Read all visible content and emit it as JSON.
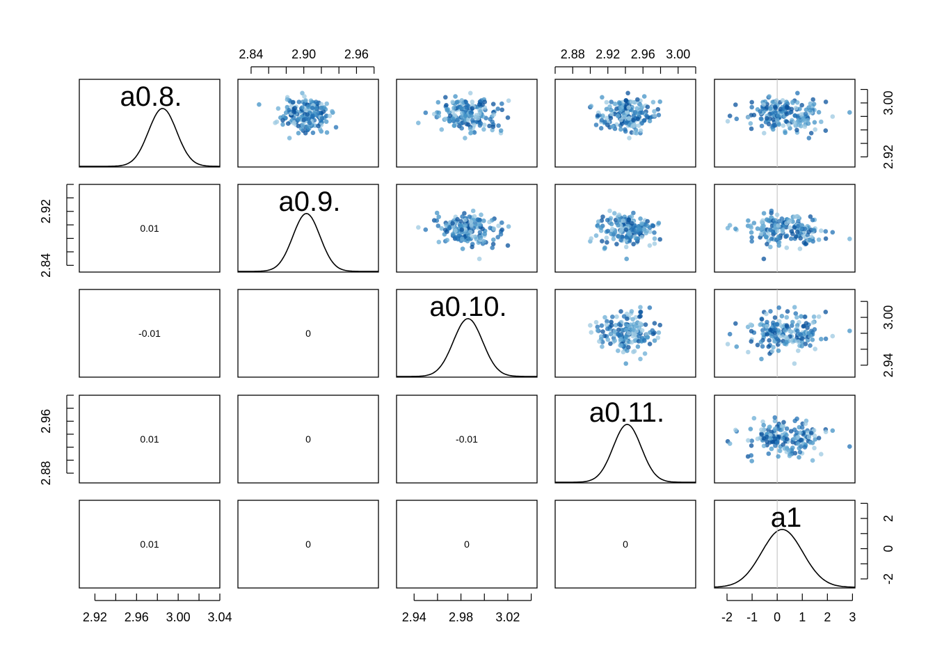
{
  "chart_data": {
    "type": "pairs",
    "variables": [
      "a0.8.",
      "a0.9.",
      "a0.10.",
      "a0.11.",
      "a1"
    ],
    "ranges": [
      [
        2.905,
        3.04
      ],
      [
        2.825,
        2.985
      ],
      [
        2.925,
        3.045
      ],
      [
        2.86,
        3.02
      ],
      [
        -2.5,
        3.1
      ]
    ],
    "axis_ticks": {
      "top": [
        {
          "var": 1,
          "major": [
            "2.84",
            "2.90",
            "2.96"
          ],
          "minor_step": 0.02
        },
        {
          "var": 3,
          "major": [
            "2.88",
            "2.92",
            "2.96",
            "3.00"
          ],
          "minor_step": 0.02
        }
      ],
      "bottom": [
        {
          "var": 0,
          "major": [
            "2.92",
            "2.96",
            "3.00",
            "3.04"
          ],
          "minor_step": 0.02
        },
        {
          "var": 2,
          "major": [
            "2.94",
            "2.98",
            "3.02"
          ],
          "minor_step": 0.02
        },
        {
          "var": 4,
          "major": [
            "-2",
            "-1",
            "0",
            "1",
            "2",
            "3"
          ],
          "minor_step": 1
        }
      ],
      "left": [
        {
          "var": 1,
          "range": [
            2.83,
            2.96
          ],
          "major": [
            "2.84",
            "2.92"
          ],
          "minor_step": 0.02
        },
        {
          "var": 3,
          "range": [
            2.865,
            3.0
          ],
          "major": [
            "2.88",
            "2.96"
          ],
          "minor_step": 0.02
        }
      ],
      "right": [
        {
          "var": 0,
          "range": [
            2.905,
            3.035
          ],
          "major": [
            "2.92",
            "3.00"
          ],
          "minor_step": 0.02
        },
        {
          "var": 2,
          "range": [
            2.925,
            3.035
          ],
          "major": [
            "2.94",
            "3.00"
          ],
          "minor_step": 0.02
        },
        {
          "var": 4,
          "range": [
            -2.6,
            3.2
          ],
          "major": [
            "-2",
            "0",
            "2"
          ],
          "minor_step": 1
        }
      ]
    },
    "correlations": [
      {
        "row": 1,
        "col": 0,
        "value": "0.01"
      },
      {
        "row": 2,
        "col": 0,
        "value": "-0.01"
      },
      {
        "row": 2,
        "col": 1,
        "value": "0"
      },
      {
        "row": 3,
        "col": 0,
        "value": "0.01"
      },
      {
        "row": 3,
        "col": 1,
        "value": "0"
      },
      {
        "row": 3,
        "col": 2,
        "value": "-0.01"
      },
      {
        "row": 4,
        "col": 0,
        "value": "0.01"
      },
      {
        "row": 4,
        "col": 1,
        "value": "0"
      },
      {
        "row": 4,
        "col": 2,
        "value": "0"
      },
      {
        "row": 4,
        "col": 3,
        "value": "0"
      }
    ],
    "densities": [
      {
        "var": 0,
        "mean": 2.985,
        "sd": 0.0135
      },
      {
        "var": 1,
        "mean": 2.903,
        "sd": 0.0155
      },
      {
        "var": 2,
        "mean": 2.986,
        "sd": 0.0125
      },
      {
        "var": 3,
        "mean": 2.942,
        "sd": 0.016
      },
      {
        "var": 4,
        "mean": 0.2,
        "sd": 0.82
      }
    ],
    "a1_reference_line": 0,
    "point_colors": [
      "#9ecae1",
      "#6baed6",
      "#4292c6",
      "#2171b5",
      "#08519c"
    ],
    "grid": false,
    "n_samples": 180
  }
}
